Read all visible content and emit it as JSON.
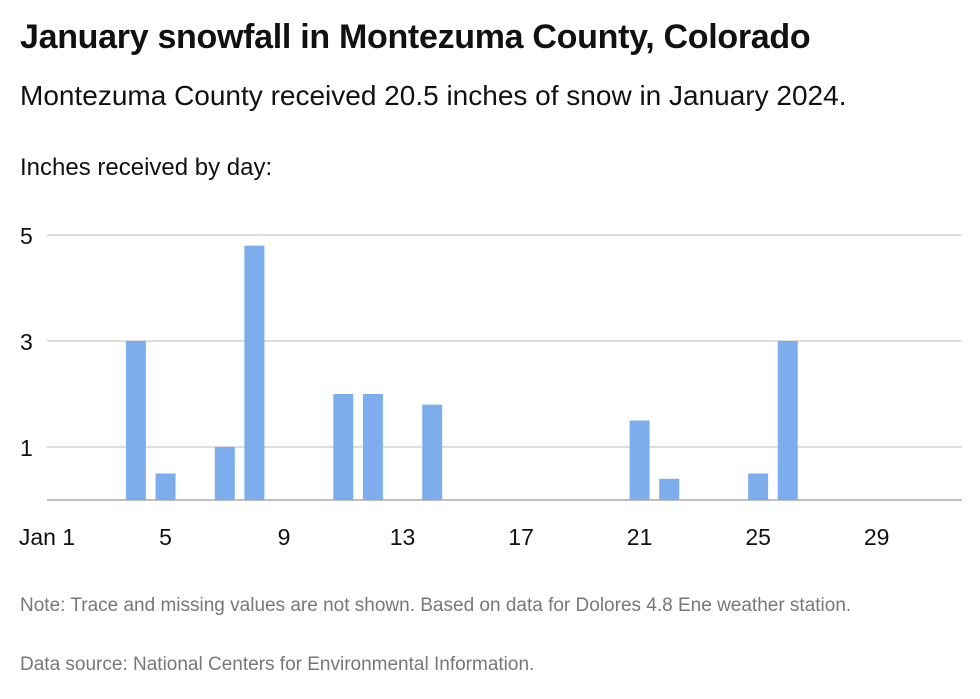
{
  "header": {
    "title": "January snowfall in Montezuma County, Colorado",
    "subtitle": "Montezuma County received 20.5 inches of snow in January 2024.",
    "axis_caption": "Inches received by day:"
  },
  "footer": {
    "note": "Note: Trace and missing values are not shown. Based on data for Dolores 4.8 Ene weather station.",
    "source": "Data source: National Centers for Environmental Information."
  },
  "chart_data": {
    "type": "bar",
    "title": "January snowfall in Montezuma County, Colorado",
    "subtitle": "Montezuma County received 20.5 inches of snow in January 2024.",
    "ylabel": "Inches received by day:",
    "xlabel": "",
    "categories": [
      1,
      2,
      3,
      4,
      5,
      6,
      7,
      8,
      9,
      10,
      11,
      12,
      13,
      14,
      15,
      16,
      17,
      18,
      19,
      20,
      21,
      22,
      23,
      24,
      25,
      26,
      27,
      28,
      29,
      30,
      31
    ],
    "values": [
      0,
      0,
      0,
      3,
      0.5,
      0,
      1,
      4.8,
      0,
      0,
      2,
      2,
      0,
      1.8,
      0,
      0,
      0,
      0,
      0,
      0,
      1.5,
      0.4,
      0,
      0,
      0.5,
      3,
      0,
      0,
      0,
      0,
      0
    ],
    "x_tick_labels": [
      {
        "day": 1,
        "label": "Jan 1"
      },
      {
        "day": 5,
        "label": "5"
      },
      {
        "day": 9,
        "label": "9"
      },
      {
        "day": 13,
        "label": "13"
      },
      {
        "day": 17,
        "label": "17"
      },
      {
        "day": 21,
        "label": "21"
      },
      {
        "day": 25,
        "label": "25"
      },
      {
        "day": 29,
        "label": "29"
      }
    ],
    "y_ticks": [
      1,
      3,
      5
    ],
    "ylim": [
      0,
      5.2
    ],
    "grid": true,
    "bar_color": "#7eadee",
    "grid_color": "#bbbbbb"
  }
}
